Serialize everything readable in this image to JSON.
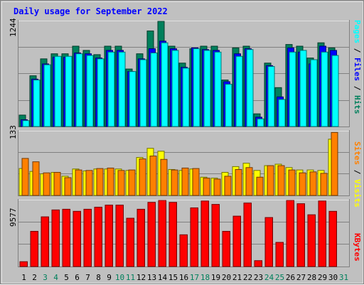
{
  "title": "Daily usage for September 2022",
  "colors": {
    "hits": "#00805c",
    "files": "#0000ff",
    "pages": "#00ffff",
    "visits": "#ffff00",
    "sites": "#ff8000",
    "kbytes": "#ff0000",
    "weekday_label": "#000000",
    "weekend_label": "#00805c",
    "panel_bg": "#c0c0c0",
    "title": "#0000ff"
  },
  "side_labels": {
    "top": [
      "Pages",
      "Files",
      "Hits"
    ],
    "middle": [
      "Sites",
      "Visits"
    ],
    "bottom": [
      "KBytes"
    ]
  },
  "weekend_days": [
    3,
    4,
    10,
    11,
    17,
    18,
    24,
    25,
    31
  ],
  "chart_data": [
    {
      "type": "bar",
      "title": "Daily usage for September 2022",
      "x": [
        1,
        2,
        3,
        4,
        5,
        6,
        7,
        8,
        9,
        10,
        11,
        12,
        13,
        14,
        15,
        16,
        17,
        18,
        19,
        20,
        21,
        22,
        23,
        24,
        25,
        26,
        27,
        28,
        29,
        30,
        31
      ],
      "ylim": [
        0,
        1244
      ],
      "ymax_label": "1244",
      "series": [
        {
          "name": "Hits",
          "values": [
            135,
            600,
            800,
            860,
            860,
            950,
            900,
            850,
            950,
            950,
            680,
            860,
            1130,
            1244,
            950,
            750,
            920,
            950,
            950,
            550,
            930,
            950,
            150,
            750,
            460,
            970,
            950,
            810,
            990,
            930,
            0
          ]
        },
        {
          "name": "Files",
          "values": [
            80,
            560,
            740,
            820,
            820,
            870,
            860,
            810,
            900,
            900,
            650,
            800,
            920,
            1010,
            920,
            700,
            930,
            910,
            900,
            530,
            860,
            920,
            110,
            720,
            350,
            930,
            880,
            740,
            950,
            900,
            0
          ]
        },
        {
          "name": "Pages",
          "values": [
            70,
            550,
            730,
            830,
            830,
            860,
            840,
            800,
            880,
            880,
            650,
            790,
            870,
            990,
            900,
            690,
            920,
            900,
            880,
            500,
            830,
            910,
            90,
            710,
            320,
            880,
            900,
            790,
            880,
            840,
            0
          ]
        }
      ]
    },
    {
      "type": "bar",
      "x": [
        1,
        2,
        3,
        4,
        5,
        6,
        7,
        8,
        9,
        10,
        11,
        12,
        13,
        14,
        15,
        16,
        17,
        18,
        19,
        20,
        21,
        22,
        23,
        24,
        25,
        26,
        27,
        28,
        29,
        30,
        31
      ],
      "ylim": [
        0,
        133
      ],
      "ymax_label": "133",
      "series": [
        {
          "name": "Visits",
          "values": [
            56,
            50,
            45,
            48,
            40,
            55,
            51,
            55,
            55,
            55,
            52,
            79,
            98,
            92,
            54,
            52,
            55,
            38,
            36,
            48,
            60,
            67,
            52,
            62,
            65,
            58,
            53,
            53,
            52,
            117,
            0
          ]
        },
        {
          "name": "Sites",
          "values": [
            77,
            70,
            47,
            48,
            37,
            53,
            52,
            56,
            57,
            52,
            53,
            76,
            82,
            75,
            53,
            57,
            56,
            36,
            34,
            40,
            54,
            58,
            38,
            62,
            62,
            53,
            47,
            49,
            46,
            131,
            0
          ]
        }
      ]
    },
    {
      "type": "bar",
      "x": [
        1,
        2,
        3,
        4,
        5,
        6,
        7,
        8,
        9,
        10,
        11,
        12,
        13,
        14,
        15,
        16,
        17,
        18,
        19,
        20,
        21,
        22,
        23,
        24,
        25,
        26,
        27,
        28,
        29,
        30,
        31
      ],
      "ylim": [
        0,
        9577
      ],
      "ymax_label": "9577",
      "series": [
        {
          "name": "KBytes",
          "values": [
            700,
            5100,
            7200,
            8200,
            8300,
            8000,
            8300,
            8600,
            8900,
            8900,
            7000,
            8300,
            9300,
            9577,
            9300,
            4600,
            8500,
            9500,
            9000,
            5100,
            7300,
            9200,
            850,
            7100,
            3500,
            9577,
            9100,
            7500,
            9500,
            8000,
            0
          ]
        }
      ]
    }
  ]
}
